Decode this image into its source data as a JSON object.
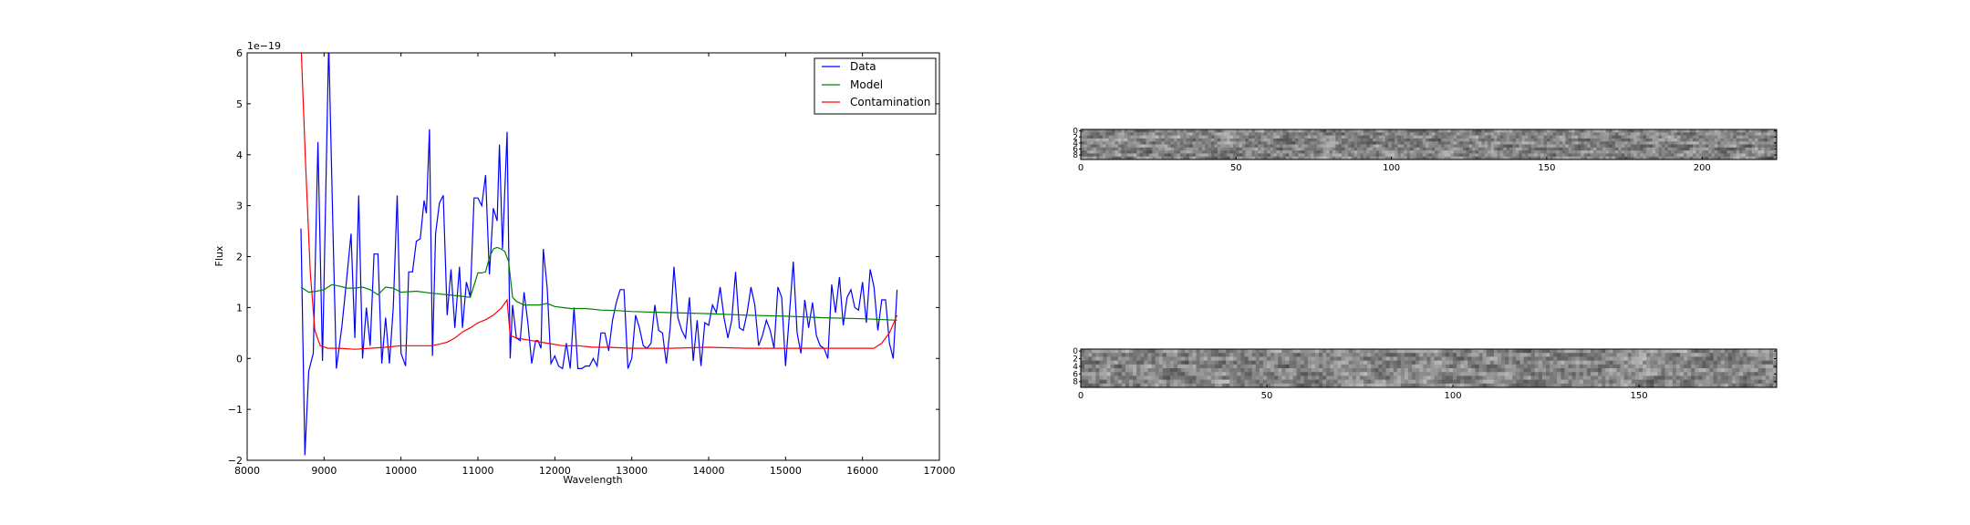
{
  "chart_data": [
    {
      "type": "line",
      "xlabel": "Wavelength",
      "ylabel": "Flux",
      "offset_text": "1e−19",
      "xlim": [
        8000,
        17000
      ],
      "ylim": [
        -2,
        6
      ],
      "x_ticks": [
        8000,
        9000,
        10000,
        11000,
        12000,
        13000,
        14000,
        15000,
        16000,
        17000
      ],
      "y_ticks": [
        -2,
        -1,
        0,
        1,
        2,
        3,
        4,
        5,
        6
      ],
      "y_tick_labels": [
        "−2",
        "−1",
        "0",
        "1",
        "2",
        "3",
        "4",
        "5",
        "6"
      ],
      "grid": false,
      "legend_position": "top-right",
      "series": [
        {
          "name": "Data",
          "color": "#0000ff",
          "points": [
            [
              8700,
              2.55
            ],
            [
              8750,
              -1.9
            ],
            [
              8800,
              -0.25
            ],
            [
              8860,
              0.1
            ],
            [
              8920,
              4.25
            ],
            [
              8980,
              -0.05
            ],
            [
              9060,
              6.2
            ],
            [
              9120,
              2.2
            ],
            [
              9160,
              -0.2
            ],
            [
              9230,
              0.6
            ],
            [
              9290,
              1.5
            ],
            [
              9350,
              2.45
            ],
            [
              9400,
              0.4
            ],
            [
              9450,
              3.2
            ],
            [
              9500,
              0.0
            ],
            [
              9550,
              1.0
            ],
            [
              9600,
              0.25
            ],
            [
              9650,
              2.05
            ],
            [
              9700,
              2.05
            ],
            [
              9750,
              -0.1
            ],
            [
              9800,
              0.8
            ],
            [
              9850,
              -0.1
            ],
            [
              9900,
              1.0
            ],
            [
              9950,
              3.2
            ],
            [
              10000,
              0.1
            ],
            [
              10060,
              -0.15
            ],
            [
              10100,
              1.7
            ],
            [
              10150,
              1.7
            ],
            [
              10200,
              2.3
            ],
            [
              10250,
              2.35
            ],
            [
              10300,
              3.1
            ],
            [
              10330,
              2.85
            ],
            [
              10370,
              4.5
            ],
            [
              10410,
              0.05
            ],
            [
              10450,
              2.45
            ],
            [
              10500,
              3.05
            ],
            [
              10550,
              3.2
            ],
            [
              10600,
              0.85
            ],
            [
              10650,
              1.75
            ],
            [
              10700,
              0.6
            ],
            [
              10760,
              1.8
            ],
            [
              10800,
              0.6
            ],
            [
              10850,
              1.5
            ],
            [
              10900,
              1.2
            ],
            [
              10950,
              3.15
            ],
            [
              11000,
              3.15
            ],
            [
              11050,
              3.0
            ],
            [
              11100,
              3.6
            ],
            [
              11150,
              1.65
            ],
            [
              11200,
              2.95
            ],
            [
              11250,
              2.7
            ],
            [
              11280,
              4.2
            ],
            [
              11320,
              2.15
            ],
            [
              11380,
              4.45
            ],
            [
              11420,
              0.0
            ],
            [
              11450,
              1.05
            ],
            [
              11500,
              0.4
            ],
            [
              11550,
              0.35
            ],
            [
              11600,
              1.3
            ],
            [
              11650,
              0.7
            ],
            [
              11700,
              -0.1
            ],
            [
              11750,
              0.35
            ],
            [
              11780,
              0.35
            ],
            [
              11820,
              0.2
            ],
            [
              11850,
              2.15
            ],
            [
              11900,
              1.4
            ],
            [
              11950,
              -0.1
            ],
            [
              12000,
              0.05
            ],
            [
              12050,
              -0.15
            ],
            [
              12100,
              -0.2
            ],
            [
              12150,
              0.3
            ],
            [
              12200,
              -0.2
            ],
            [
              12250,
              1.0
            ],
            [
              12300,
              -0.2
            ],
            [
              12350,
              -0.2
            ],
            [
              12400,
              -0.15
            ],
            [
              12450,
              -0.15
            ],
            [
              12500,
              0.0
            ],
            [
              12550,
              -0.15
            ],
            [
              12600,
              0.5
            ],
            [
              12650,
              0.5
            ],
            [
              12700,
              0.15
            ],
            [
              12750,
              0.75
            ],
            [
              12800,
              1.1
            ],
            [
              12850,
              1.35
            ],
            [
              12900,
              1.35
            ],
            [
              12950,
              -0.2
            ],
            [
              13000,
              0.0
            ],
            [
              13050,
              0.85
            ],
            [
              13100,
              0.6
            ],
            [
              13150,
              0.25
            ],
            [
              13200,
              0.2
            ],
            [
              13250,
              0.3
            ],
            [
              13300,
              1.05
            ],
            [
              13350,
              0.55
            ],
            [
              13400,
              0.5
            ],
            [
              13450,
              -0.1
            ],
            [
              13500,
              0.6
            ],
            [
              13550,
              1.8
            ],
            [
              13600,
              0.8
            ],
            [
              13650,
              0.55
            ],
            [
              13700,
              0.4
            ],
            [
              13750,
              1.2
            ],
            [
              13800,
              -0.05
            ],
            [
              13850,
              0.75
            ],
            [
              13900,
              -0.15
            ],
            [
              13950,
              0.7
            ],
            [
              14000,
              0.65
            ],
            [
              14050,
              1.05
            ],
            [
              14100,
              0.9
            ],
            [
              14150,
              1.4
            ],
            [
              14200,
              0.8
            ],
            [
              14250,
              0.4
            ],
            [
              14300,
              0.75
            ],
            [
              14350,
              1.7
            ],
            [
              14400,
              0.6
            ],
            [
              14450,
              0.55
            ],
            [
              14500,
              0.9
            ],
            [
              14550,
              1.4
            ],
            [
              14600,
              1.05
            ],
            [
              14650,
              0.25
            ],
            [
              14700,
              0.45
            ],
            [
              14750,
              0.75
            ],
            [
              14800,
              0.55
            ],
            [
              14850,
              0.2
            ],
            [
              14900,
              1.4
            ],
            [
              14950,
              1.2
            ],
            [
              15000,
              -0.15
            ],
            [
              15050,
              0.85
            ],
            [
              15100,
              1.9
            ],
            [
              15150,
              0.5
            ],
            [
              15200,
              0.1
            ],
            [
              15250,
              1.15
            ],
            [
              15300,
              0.6
            ],
            [
              15350,
              1.1
            ],
            [
              15400,
              0.45
            ],
            [
              15450,
              0.25
            ],
            [
              15500,
              0.2
            ],
            [
              15550,
              0.0
            ],
            [
              15600,
              1.45
            ],
            [
              15650,
              0.9
            ],
            [
              15700,
              1.6
            ],
            [
              15750,
              0.65
            ],
            [
              15800,
              1.2
            ],
            [
              15850,
              1.35
            ],
            [
              15900,
              1.0
            ],
            [
              15950,
              0.95
            ],
            [
              16000,
              1.5
            ],
            [
              16050,
              0.7
            ],
            [
              16100,
              1.75
            ],
            [
              16150,
              1.4
            ],
            [
              16200,
              0.55
            ],
            [
              16250,
              1.15
            ],
            [
              16300,
              1.15
            ],
            [
              16350,
              0.3
            ],
            [
              16400,
              0.0
            ],
            [
              16450,
              1.35
            ]
          ]
        },
        {
          "name": "Model",
          "color": "#008000",
          "points": [
            [
              8700,
              1.4
            ],
            [
              8800,
              1.3
            ],
            [
              8900,
              1.32
            ],
            [
              9000,
              1.35
            ],
            [
              9100,
              1.45
            ],
            [
              9200,
              1.42
            ],
            [
              9300,
              1.38
            ],
            [
              9400,
              1.38
            ],
            [
              9500,
              1.4
            ],
            [
              9600,
              1.35
            ],
            [
              9700,
              1.25
            ],
            [
              9800,
              1.4
            ],
            [
              9900,
              1.38
            ],
            [
              10000,
              1.3
            ],
            [
              10200,
              1.32
            ],
            [
              10400,
              1.28
            ],
            [
              10600,
              1.25
            ],
            [
              10800,
              1.22
            ],
            [
              10900,
              1.2
            ],
            [
              11000,
              1.68
            ],
            [
              11050,
              1.68
            ],
            [
              11100,
              1.7
            ],
            [
              11150,
              1.98
            ],
            [
              11200,
              2.15
            ],
            [
              11250,
              2.18
            ],
            [
              11300,
              2.15
            ],
            [
              11350,
              2.1
            ],
            [
              11400,
              1.9
            ],
            [
              11450,
              1.2
            ],
            [
              11500,
              1.12
            ],
            [
              11600,
              1.05
            ],
            [
              11700,
              1.05
            ],
            [
              11800,
              1.05
            ],
            [
              11900,
              1.08
            ],
            [
              12000,
              1.02
            ],
            [
              12100,
              1.0
            ],
            [
              12200,
              0.98
            ],
            [
              12400,
              0.98
            ],
            [
              12600,
              0.95
            ],
            [
              12800,
              0.94
            ],
            [
              13000,
              0.92
            ],
            [
              13500,
              0.9
            ],
            [
              14000,
              0.88
            ],
            [
              14500,
              0.85
            ],
            [
              15000,
              0.83
            ],
            [
              15500,
              0.8
            ],
            [
              16000,
              0.78
            ],
            [
              16450,
              0.75
            ]
          ]
        },
        {
          "name": "Contamination",
          "color": "#ff0000",
          "points": [
            [
              8700,
              6.2
            ],
            [
              8760,
              3.8
            ],
            [
              8820,
              1.7
            ],
            [
              8880,
              0.55
            ],
            [
              8950,
              0.25
            ],
            [
              9050,
              0.2
            ],
            [
              9200,
              0.2
            ],
            [
              9400,
              0.18
            ],
            [
              9600,
              0.2
            ],
            [
              9800,
              0.22
            ],
            [
              10000,
              0.25
            ],
            [
              10200,
              0.25
            ],
            [
              10400,
              0.25
            ],
            [
              10500,
              0.28
            ],
            [
              10600,
              0.32
            ],
            [
              10700,
              0.4
            ],
            [
              10800,
              0.52
            ],
            [
              10900,
              0.6
            ],
            [
              11000,
              0.7
            ],
            [
              11100,
              0.76
            ],
            [
              11200,
              0.85
            ],
            [
              11300,
              0.98
            ],
            [
              11380,
              1.15
            ],
            [
              11420,
              0.45
            ],
            [
              11500,
              0.4
            ],
            [
              11700,
              0.35
            ],
            [
              11900,
              0.3
            ],
            [
              12100,
              0.25
            ],
            [
              12300,
              0.25
            ],
            [
              12500,
              0.22
            ],
            [
              12700,
              0.22
            ],
            [
              13000,
              0.2
            ],
            [
              13500,
              0.2
            ],
            [
              14000,
              0.22
            ],
            [
              14500,
              0.2
            ],
            [
              15000,
              0.2
            ],
            [
              15500,
              0.2
            ],
            [
              16000,
              0.2
            ],
            [
              16150,
              0.2
            ],
            [
              16250,
              0.3
            ],
            [
              16350,
              0.5
            ],
            [
              16450,
              0.85
            ]
          ]
        }
      ]
    },
    {
      "type": "heatmap",
      "colormap": "gray",
      "x_ticks": [
        0,
        50,
        100,
        150,
        200
      ],
      "y_ticks": [
        0,
        2,
        4,
        6,
        8
      ],
      "xlim": [
        0,
        224
      ],
      "ylim": [
        0,
        10
      ],
      "seed": 7
    },
    {
      "type": "heatmap",
      "colormap": "gray",
      "x_ticks": [
        0,
        50,
        100,
        150
      ],
      "y_ticks": [
        0,
        2,
        4,
        6,
        8
      ],
      "xlim": [
        0,
        187
      ],
      "ylim": [
        0,
        10
      ],
      "seed": 13
    }
  ]
}
